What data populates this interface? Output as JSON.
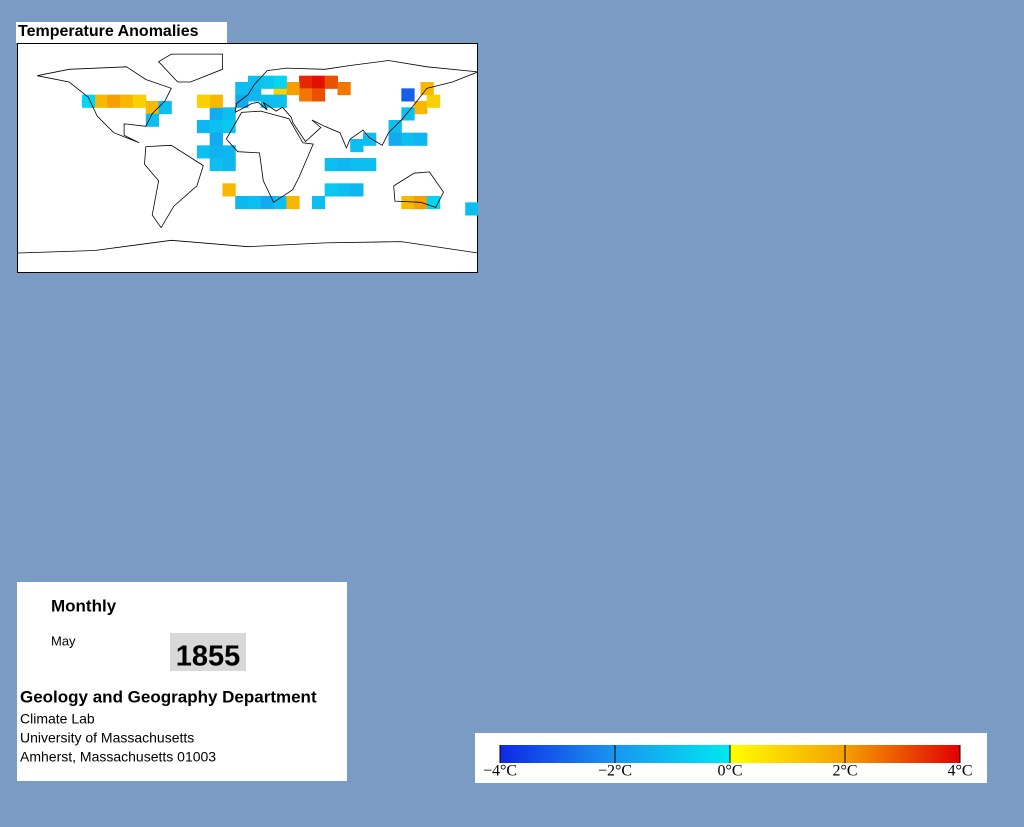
{
  "title": "Temperature Anomalies",
  "map": {
    "cell_size": 10,
    "cells": [
      {
        "lon": 45,
        "lat": 60,
        "value": 3.5
      },
      {
        "lon": 55,
        "lat": 60,
        "value": 3.8
      },
      {
        "lon": 65,
        "lat": 60,
        "value": 3
      },
      {
        "lon": 45,
        "lat": 50,
        "value": 2.5
      },
      {
        "lon": 55,
        "lat": 50,
        "value": 3
      },
      {
        "lon": 35,
        "lat": 55,
        "value": 2
      },
      {
        "lon": 75,
        "lat": 55,
        "value": 2.5
      },
      {
        "lon": 25,
        "lat": 50,
        "value": 1
      },
      {
        "lon": 5,
        "lat": 60,
        "value": -1
      },
      {
        "lon": 15,
        "lat": 60,
        "value": -0.8
      },
      {
        "lon": 25,
        "lat": 60,
        "value": -0.5
      },
      {
        "lon": -5,
        "lat": 55,
        "value": -1
      },
      {
        "lon": 5,
        "lat": 50,
        "value": -1.2
      },
      {
        "lon": 15,
        "lat": 45,
        "value": -1
      },
      {
        "lon": -5,
        "lat": 45,
        "value": -1.5
      },
      {
        "lon": 25,
        "lat": 45,
        "value": -1
      },
      {
        "lon": -25,
        "lat": 35,
        "value": -1.5
      },
      {
        "lon": -15,
        "lat": 35,
        "value": -1
      },
      {
        "lon": -35,
        "lat": 25,
        "value": -1.2
      },
      {
        "lon": -25,
        "lat": 25,
        "value": -1
      },
      {
        "lon": -15,
        "lat": 25,
        "value": -0.8
      },
      {
        "lon": -25,
        "lat": 15,
        "value": -1.5
      },
      {
        "lon": -35,
        "lat": 5,
        "value": -1
      },
      {
        "lon": -25,
        "lat": 5,
        "value": -1.3
      },
      {
        "lon": -15,
        "lat": 5,
        "value": -1.2
      },
      {
        "lon": -25,
        "lat": -5,
        "value": -1
      },
      {
        "lon": -15,
        "lat": -5,
        "value": -1.2
      },
      {
        "lon": -25,
        "lat": 45,
        "value": 1.5
      },
      {
        "lon": -35,
        "lat": 45,
        "value": 1
      },
      {
        "lon": -115,
        "lat": 45,
        "value": 1.5
      },
      {
        "lon": -105,
        "lat": 45,
        "value": 2
      },
      {
        "lon": -95,
        "lat": 45,
        "value": 1.5
      },
      {
        "lon": -85,
        "lat": 45,
        "value": 1
      },
      {
        "lon": -75,
        "lat": 40,
        "value": 1.5
      },
      {
        "lon": -65,
        "lat": 40,
        "value": -1
      },
      {
        "lon": -125,
        "lat": 45,
        "value": -0.5
      },
      {
        "lon": -75,
        "lat": 30,
        "value": -1
      },
      {
        "lon": 125,
        "lat": 50,
        "value": -3
      },
      {
        "lon": 135,
        "lat": 40,
        "value": 1.5
      },
      {
        "lon": 145,
        "lat": 45,
        "value": 1
      },
      {
        "lon": 140,
        "lat": 55,
        "value": 1.5
      },
      {
        "lon": 125,
        "lat": 35,
        "value": -1
      },
      {
        "lon": 115,
        "lat": 25,
        "value": -1
      },
      {
        "lon": 95,
        "lat": 15,
        "value": -1
      },
      {
        "lon": 85,
        "lat": 10,
        "value": -1
      },
      {
        "lon": 115,
        "lat": 15,
        "value": -1.5
      },
      {
        "lon": 125,
        "lat": 15,
        "value": -1
      },
      {
        "lon": 135,
        "lat": 15,
        "value": -1.2
      },
      {
        "lon": 65,
        "lat": -5,
        "value": -1
      },
      {
        "lon": 75,
        "lat": -5,
        "value": -1.2
      },
      {
        "lon": 85,
        "lat": -5,
        "value": -1
      },
      {
        "lon": 95,
        "lat": -5,
        "value": -1
      },
      {
        "lon": 65,
        "lat": -25,
        "value": -0.8
      },
      {
        "lon": 75,
        "lat": -25,
        "value": -1
      },
      {
        "lon": 85,
        "lat": -25,
        "value": -1.2
      },
      {
        "lon": 55,
        "lat": -35,
        "value": -1
      },
      {
        "lon": -15,
        "lat": -25,
        "value": 1.5
      },
      {
        "lon": -5,
        "lat": -35,
        "value": -1.2
      },
      {
        "lon": 5,
        "lat": -35,
        "value": -1
      },
      {
        "lon": 15,
        "lat": -35,
        "value": -1.5
      },
      {
        "lon": 25,
        "lat": -35,
        "value": -1
      },
      {
        "lon": 35,
        "lat": -35,
        "value": 1.5
      },
      {
        "lon": 125,
        "lat": -35,
        "value": 1.5
      },
      {
        "lon": 135,
        "lat": -35,
        "value": 2
      },
      {
        "lon": 145,
        "lat": -35,
        "value": -0.5
      },
      {
        "lon": 175,
        "lat": -40,
        "value": -1
      }
    ]
  },
  "panel": {
    "period": "Monthly",
    "month": "May",
    "year": "1855",
    "department": "Geology and Geography Department",
    "lines": [
      "Climate Lab",
      "University of Massachusetts",
      "Amherst, Massachusetts 01003"
    ]
  },
  "colorbar": {
    "lim": [
      -4,
      4
    ],
    "ticks": [
      {
        "value": -4,
        "label": "−4°C"
      },
      {
        "value": -2,
        "label": "−2°C"
      },
      {
        "value": 0,
        "label": "0°C"
      },
      {
        "value": 2,
        "label": "2°C"
      },
      {
        "value": 4,
        "label": "4°C"
      }
    ]
  }
}
